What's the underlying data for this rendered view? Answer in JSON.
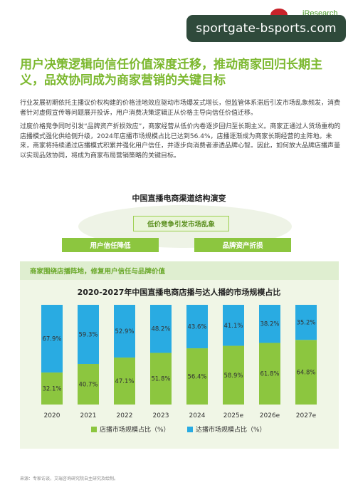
{
  "overlay": {
    "text": "sportgate-bsports.com"
  },
  "header_brand": {
    "text": "iResearch"
  },
  "headline": "用户决策逻辑向信任价值深度迁移，推动商家回归长期主义，品效协同成为商家营销的关键目标",
  "paragraphs": [
    "行业发展初期依托主播议价权构建的价格洼地效应驱动市场爆发式增长，但监管体系滞后引发市场乱象频发，消费者针对虚假宣传等问题展开投诉，用户消费决策逻辑正从价格主导向信任价值迁移。",
    "过度价格竞争同时引发“品牌资产折损效应”，商家经营从低价内卷逐步回归至长期主义。商家正通过人货场重构的店播模式强化供给侧升级，2024年店播市场规模占比已达到56.4%，店播逐渐成为商家长期经营的主阵地。未来，商家将持续通过店播模式积累并强化用户信任，并逐步向消费者渗透品牌心智。因此，如何放大品牌店播声量以实现品效协同，将成为商家布局营销策略的关键目标。"
  ],
  "diagram": {
    "title": "中国直播电商渠道结构演变",
    "center_label": "低价竞争引发市场乱象",
    "left_label": "用户信任降低",
    "right_label": "品牌资产折损",
    "panel_header": "商家围绕店播阵地，修复用户信任与品牌价值"
  },
  "chart_data": {
    "type": "bar",
    "stacked": true,
    "title": "2020-2027年中国直播电商店播与达人播的市场规模占比",
    "categories": [
      "2020",
      "2021",
      "2022",
      "2023",
      "2024",
      "2025e",
      "2026e",
      "2027e"
    ],
    "series": [
      {
        "name": "店播市场规模占比（%）",
        "color": "#8cc63f",
        "values": [
          32.1,
          40.7,
          47.1,
          51.8,
          56.4,
          58.9,
          61.8,
          64.8
        ],
        "labels": [
          "32.1%",
          "40.7%",
          "47.1%",
          "51.8%",
          "56.4%",
          "58.9%",
          "61.8%",
          "64.8%"
        ]
      },
      {
        "name": "达播市场规模占比（%）",
        "color": "#29abe2",
        "values": [
          67.9,
          59.3,
          52.9,
          48.2,
          43.6,
          41.1,
          38.2,
          35.2
        ],
        "labels": [
          "67.9%",
          "59.3%",
          "52.9%",
          "48.2%",
          "43.6%",
          "41.1%",
          "38.2%",
          "35.2%"
        ]
      }
    ],
    "ylim": [
      0,
      100
    ],
    "legend_position": "bottom"
  },
  "source": "来源：专家访谈，艾瑞咨询研究院自主研究及绘制。"
}
